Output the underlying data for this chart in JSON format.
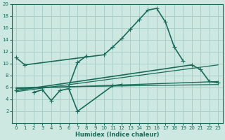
{
  "xlabel": "Humidex (Indice chaleur)",
  "background_color": "#cce8e0",
  "grid_color": "#aacfc8",
  "line_color": "#1a6b5a",
  "xlim": [
    -0.5,
    23.5
  ],
  "ylim": [
    0,
    20
  ],
  "xticks": [
    0,
    1,
    2,
    3,
    4,
    5,
    6,
    7,
    8,
    9,
    10,
    11,
    12,
    13,
    14,
    15,
    16,
    17,
    18,
    19,
    20,
    21,
    22,
    23
  ],
  "yticks": [
    2,
    4,
    6,
    8,
    10,
    12,
    14,
    16,
    18,
    20
  ],
  "series": [
    {
      "x": [
        0,
        1,
        10,
        11,
        12,
        13,
        14,
        15,
        16,
        17,
        18,
        19
      ],
      "y": [
        11.0,
        9.8,
        11.5,
        12.8,
        14.2,
        15.8,
        17.4,
        19.0,
        19.3,
        17.0,
        12.8,
        10.5
      ],
      "marker": "+",
      "markersize": 4,
      "linewidth": 1.2
    },
    {
      "x": [
        2,
        3,
        4,
        5,
        6,
        7,
        11,
        12
      ],
      "y": [
        5.2,
        5.6,
        3.8,
        5.5,
        5.8,
        2.0,
        6.3,
        6.5
      ],
      "marker": "+",
      "markersize": 4,
      "linewidth": 1.2
    },
    {
      "x": [
        6,
        7,
        8
      ],
      "y": [
        6.2,
        10.2,
        11.3
      ],
      "marker": "+",
      "markersize": 4,
      "linewidth": 1.2
    },
    {
      "x": [
        0,
        23
      ],
      "y": [
        5.8,
        7.0
      ],
      "marker": null,
      "linewidth": 1.0
    },
    {
      "x": [
        0,
        20,
        21,
        22,
        23
      ],
      "y": [
        5.5,
        9.8,
        9.0,
        7.0,
        6.8
      ],
      "marker": "+",
      "markersize": 4,
      "linewidth": 1.2
    }
  ]
}
